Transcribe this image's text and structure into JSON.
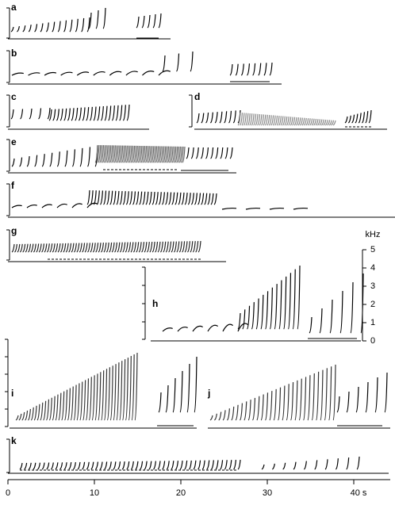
{
  "panels": [
    {
      "label": "a"
    },
    {
      "label": "b"
    },
    {
      "label": "c"
    },
    {
      "label": "d"
    },
    {
      "label": "e"
    },
    {
      "label": "f"
    },
    {
      "label": "g"
    },
    {
      "label": "h"
    },
    {
      "label": "i"
    },
    {
      "label": "j"
    },
    {
      "label": "k"
    }
  ],
  "time_axis": {
    "ticks": [
      0,
      10,
      20,
      30,
      {
        "value": 40,
        "label": "40 s"
      }
    ]
  },
  "frequency_axis": {
    "title": "kHz",
    "ticks": [
      0,
      1,
      2,
      3,
      4,
      5
    ]
  }
}
